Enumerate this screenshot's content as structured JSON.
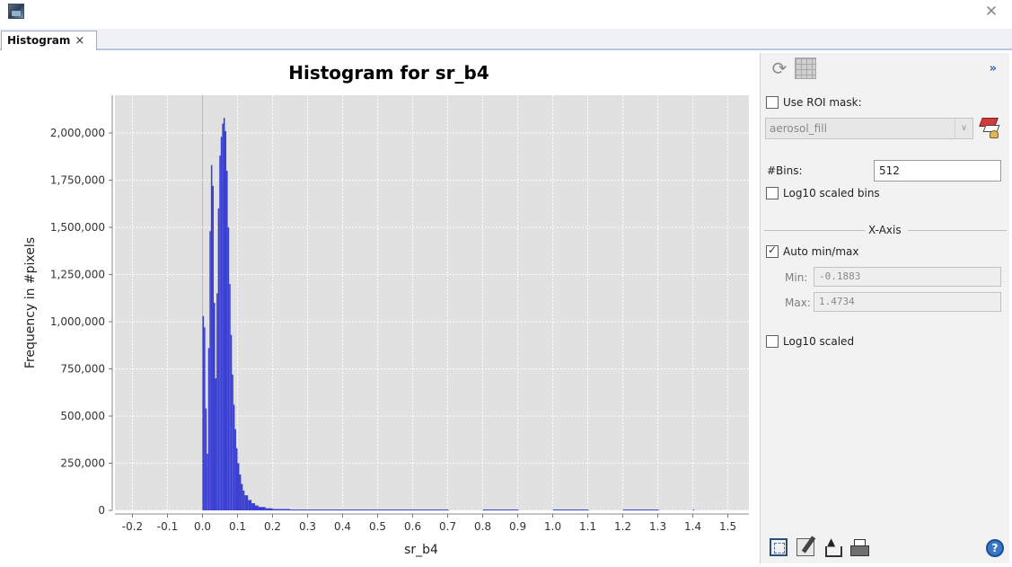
{
  "window": {
    "close_icon": "close-icon"
  },
  "tab": {
    "label": "Histogram",
    "close": "×"
  },
  "chart_data": {
    "type": "bar",
    "title": "Histogram for sr_b4",
    "xlabel": "sr_b4",
    "ylabel": "Frequency in #pixels",
    "xlim": [
      -0.25,
      1.56
    ],
    "ylim": [
      0,
      2200000
    ],
    "xticks": [
      "-0.2",
      "-0.1",
      "0.0",
      "0.1",
      "0.2",
      "0.3",
      "0.4",
      "0.5",
      "0.6",
      "0.7",
      "0.8",
      "0.9",
      "1.0",
      "1.1",
      "1.2",
      "1.3",
      "1.4",
      "1.5"
    ],
    "yticks": [
      "0",
      "250,000",
      "500,000",
      "750,000",
      "1,000,000",
      "1,250,000",
      "1,500,000",
      "1,750,000",
      "2,000,000"
    ],
    "grid": true,
    "bar_color": "#3a3fd4",
    "plot_background": "#e1e1e1",
    "bins": [
      {
        "x": 0.0,
        "v": 1030000
      },
      {
        "x": 0.004,
        "v": 970000
      },
      {
        "x": 0.008,
        "v": 540000
      },
      {
        "x": 0.012,
        "v": 300000
      },
      {
        "x": 0.016,
        "v": 860000
      },
      {
        "x": 0.02,
        "v": 1480000
      },
      {
        "x": 0.024,
        "v": 1830000
      },
      {
        "x": 0.028,
        "v": 1720000
      },
      {
        "x": 0.032,
        "v": 1100000
      },
      {
        "x": 0.036,
        "v": 700000
      },
      {
        "x": 0.04,
        "v": 1150000
      },
      {
        "x": 0.044,
        "v": 1600000
      },
      {
        "x": 0.048,
        "v": 1880000
      },
      {
        "x": 0.052,
        "v": 1980000
      },
      {
        "x": 0.056,
        "v": 2050000
      },
      {
        "x": 0.06,
        "v": 2080000
      },
      {
        "x": 0.064,
        "v": 2010000
      },
      {
        "x": 0.068,
        "v": 1800000
      },
      {
        "x": 0.072,
        "v": 1500000
      },
      {
        "x": 0.076,
        "v": 1200000
      },
      {
        "x": 0.08,
        "v": 930000
      },
      {
        "x": 0.084,
        "v": 720000
      },
      {
        "x": 0.088,
        "v": 560000
      },
      {
        "x": 0.092,
        "v": 430000
      },
      {
        "x": 0.096,
        "v": 330000
      },
      {
        "x": 0.1,
        "v": 250000
      },
      {
        "x": 0.105,
        "v": 190000
      },
      {
        "x": 0.11,
        "v": 140000
      },
      {
        "x": 0.115,
        "v": 105000
      },
      {
        "x": 0.12,
        "v": 80000
      },
      {
        "x": 0.13,
        "v": 55000
      },
      {
        "x": 0.14,
        "v": 38000
      },
      {
        "x": 0.15,
        "v": 26000
      },
      {
        "x": 0.16,
        "v": 18000
      },
      {
        "x": 0.18,
        "v": 11000
      },
      {
        "x": 0.2,
        "v": 7000
      },
      {
        "x": 0.25,
        "v": 4000
      },
      {
        "x": 0.3,
        "v": 2500
      },
      {
        "x": 0.4,
        "v": 1500
      },
      {
        "x": 0.5,
        "v": 1000
      },
      {
        "x": 0.6,
        "v": 700
      },
      {
        "x": 0.8,
        "v": 400
      },
      {
        "x": 1.0,
        "v": 250
      },
      {
        "x": 1.2,
        "v": 150
      },
      {
        "x": 1.4,
        "v": 100
      }
    ]
  },
  "panel": {
    "refresh_icon": "refresh-icon",
    "table_icon": "table-icon",
    "expand_label": "»",
    "use_roi_mask_label": "Use ROI mask:",
    "use_roi_mask_checked": false,
    "mask_value": "aerosol_fill",
    "bins_label": "#Bins:",
    "bins_value": "512",
    "log10_bins_label": "Log10 scaled bins",
    "log10_bins_checked": false,
    "xaxis_title": "X-Axis",
    "auto_minmax_label": "Auto min/max",
    "auto_minmax_checked": true,
    "min_label": "Min:",
    "min_value": "-0.1883",
    "max_label": "Max:",
    "max_value": "1.4734",
    "log10_scaled_label": "Log10 scaled",
    "log10_scaled_checked": false,
    "help_label": "?"
  }
}
